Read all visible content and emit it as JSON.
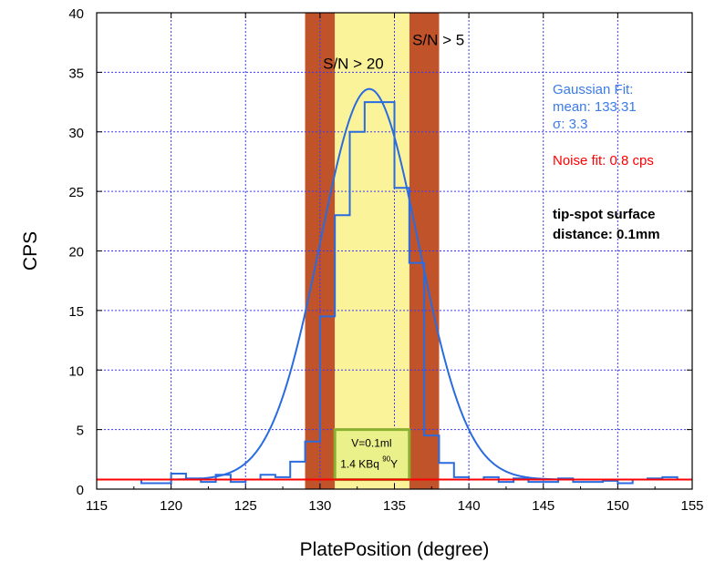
{
  "chart_data": {
    "type": "line",
    "title": "",
    "xlabel": "PlatePosition (degree)",
    "ylabel": "CPS",
    "xlim": [
      115,
      155
    ],
    "ylim": [
      0,
      40
    ],
    "x_ticks": [
      115,
      120,
      125,
      130,
      135,
      140,
      145,
      150,
      155
    ],
    "y_ticks": [
      0,
      5,
      10,
      15,
      20,
      25,
      30,
      35,
      40
    ],
    "grid": true,
    "regions": [
      {
        "label": "S/N > 5",
        "x": [
          129,
          131
        ],
        "color": "#c0532a"
      },
      {
        "label": "",
        "x": [
          136,
          138
        ],
        "color": "#c0532a"
      },
      {
        "label": "S/N > 20",
        "x": [
          131,
          136
        ],
        "color": "#faf39a"
      }
    ],
    "series": [
      {
        "kind": "histogram",
        "color": "#2a6be0",
        "x": [
          115,
          116,
          117,
          118,
          119,
          120,
          121,
          122,
          123,
          124,
          125,
          126,
          127,
          128,
          129,
          130,
          131,
          132,
          133,
          134,
          135,
          136,
          137,
          138,
          139,
          140,
          141,
          142,
          143,
          144,
          145,
          146,
          147,
          148,
          149,
          150,
          151,
          152,
          153,
          154
        ],
        "values": [
          0.8,
          0.8,
          0.8,
          0.5,
          0.5,
          1.3,
          0.9,
          0.6,
          1.2,
          0.6,
          0.8,
          1.2,
          1.0,
          2.3,
          4.0,
          14.5,
          23.0,
          30.0,
          32.5,
          32.5,
          25.3,
          19.0,
          4.5,
          2.2,
          1.0,
          0.8,
          1.0,
          0.6,
          0.9,
          0.6,
          0.6,
          0.9,
          0.6,
          0.6,
          0.7,
          0.5,
          0.8,
          0.9,
          1.0,
          0.8
        ]
      },
      {
        "kind": "gaussian-fit",
        "color": "#2a6be0",
        "mean": 133.31,
        "sigma": 3.3,
        "amplitude": 32.8,
        "baseline": 0.8
      },
      {
        "kind": "noise-fit",
        "color": "#ff0000",
        "value": 0.8
      }
    ],
    "annotations": {
      "sn5": "S/N > 5",
      "sn20": "S/N > 20",
      "gaussian_title": "Gaussian Fit:",
      "gaussian_mean": "mean: 133.31",
      "gaussian_sigma": "σ: 3.3",
      "noise": "Noise fit: 0.8 cps",
      "tip1": "tip-spot surface",
      "tip2": "distance: 0.1mm",
      "box_line1": "V=0.1ml",
      "box_line2_pre": "1.4 KBq ",
      "box_line2_sup": "90",
      "box_line2_post": "Y"
    }
  }
}
